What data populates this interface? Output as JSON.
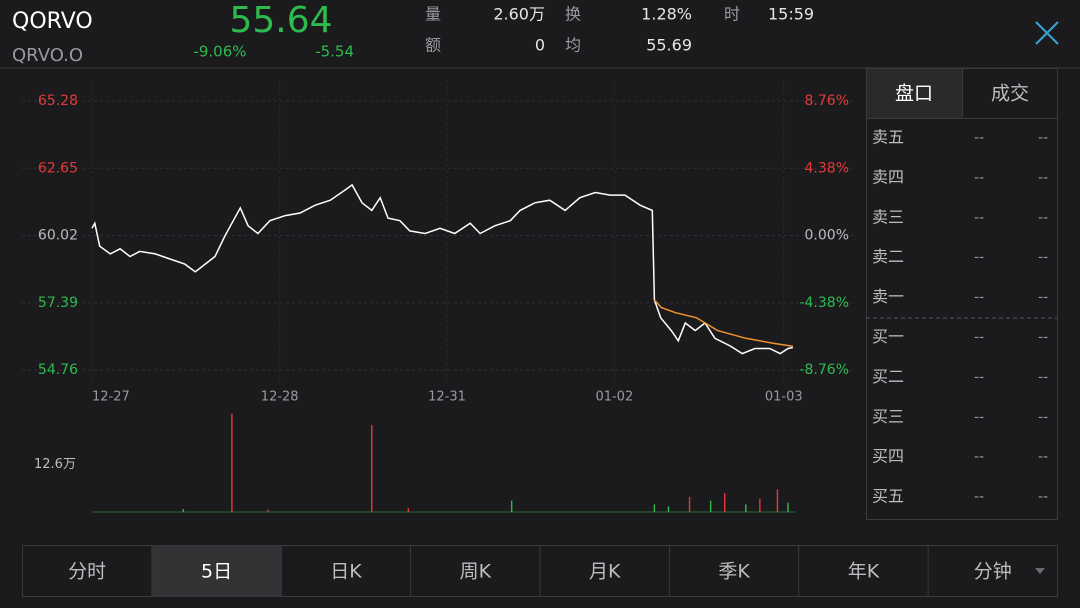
{
  "header": {
    "symbol": "QORVO",
    "code": "QRVO.O",
    "price": "55.64",
    "change_pct": "-9.06%",
    "change": "-5.54",
    "stats": [
      {
        "label": "量",
        "value": "2.60万"
      },
      {
        "label": "额",
        "value": "0"
      },
      {
        "label": "换",
        "value": "1.28%"
      },
      {
        "label": "均",
        "value": "55.69"
      },
      {
        "label": "时",
        "value": "15:59"
      }
    ]
  },
  "chart_data": {
    "type": "line",
    "xlim": [
      0,
      100
    ],
    "xticks": [
      {
        "value": 0,
        "label": "12-27"
      },
      {
        "value": 26.7,
        "label": "12-28"
      },
      {
        "value": 50.5,
        "label": "12-31"
      },
      {
        "value": 74.3,
        "label": "01-02"
      },
      {
        "value": 98.4,
        "label": "01-03"
      }
    ],
    "ylim": [
      54.76,
      65.28
    ],
    "yticks": [
      65.28,
      62.65,
      60.02,
      57.39,
      54.76
    ],
    "y2lim": [
      -8.76,
      8.76
    ],
    "y2ticks": [
      {
        "value": 8.76,
        "label": "8.76%"
      },
      {
        "value": 4.38,
        "label": "4.38%"
      },
      {
        "value": 0,
        "label": "0.00%"
      },
      {
        "value": -4.38,
        "label": "-4.38%"
      },
      {
        "value": -8.76,
        "label": "-8.76%"
      }
    ],
    "grid": true,
    "series": [
      {
        "color": "#ffffff",
        "x": [
          0,
          0.4,
          1.1,
          2.6,
          4,
          5.4,
          6.8,
          9,
          11.1,
          13.2,
          14.7,
          16.1,
          17.5,
          18.9,
          19.9,
          21.1,
          22.2,
          23.6,
          25.3,
          27.5,
          29.6,
          31.7,
          33.9,
          36,
          37,
          38.4,
          39.8,
          41,
          42.1,
          43.8,
          45.2,
          47.4,
          49.5,
          51.6,
          53.8,
          55.2,
          57.3,
          59.5,
          60.9,
          63,
          65.1,
          67.3,
          69.4,
          71.6,
          73.7,
          75.8,
          78,
          79.7,
          80,
          80.9,
          82.4,
          83.4,
          84.4,
          85.8,
          87.2,
          88.6,
          90.8,
          92.5,
          94.3,
          96.4,
          97.9,
          99,
          99.7
        ],
        "values": [
          60.3,
          60.5,
          59.6,
          59.3,
          59.5,
          59.2,
          59.4,
          59.3,
          59.1,
          58.9,
          58.6,
          58.9,
          59.2,
          60.0,
          60.5,
          61.1,
          60.4,
          60.1,
          60.6,
          60.8,
          60.9,
          61.2,
          61.4,
          61.8,
          62.0,
          61.3,
          61.0,
          61.5,
          60.7,
          60.6,
          60.2,
          60.1,
          60.3,
          60.1,
          60.5,
          60.1,
          60.4,
          60.6,
          61.0,
          61.3,
          61.4,
          61.0,
          61.5,
          61.7,
          61.6,
          61.6,
          61.2,
          61.0,
          57.5,
          56.8,
          56.3,
          55.9,
          56.6,
          56.3,
          56.6,
          56.0,
          55.7,
          55.4,
          55.6,
          55.6,
          55.4,
          55.6,
          55.64
        ]
      },
      {
        "color": "#f0922f",
        "x": [
          80,
          81,
          83,
          86,
          89,
          93,
          97,
          99.7
        ],
        "values": [
          57.5,
          57.2,
          57.0,
          56.8,
          56.3,
          56.0,
          55.8,
          55.69
        ]
      }
    ],
    "volume": {
      "ylim": [
        0,
        270000
      ],
      "yticks": [
        {
          "value": 126000,
          "label": "12.6万"
        }
      ],
      "x": [
        13,
        19.9,
        25,
        39.8,
        45,
        59.7,
        80,
        82,
        85,
        88,
        90,
        93,
        95,
        97.5,
        99
      ],
      "values": [
        8000,
        260000,
        6000,
        230000,
        10000,
        30000,
        20000,
        15000,
        40000,
        30000,
        50000,
        20000,
        35000,
        60000,
        25000
      ],
      "colors": [
        "#2dbb4e",
        "#e33a3a",
        "#e33a3a",
        "#e33a3a",
        "#e33a3a",
        "#2dbb4e",
        "#2dbb4e",
        "#2dbb4e",
        "#e33a3a",
        "#2dbb4e",
        "#e33a3a",
        "#2dbb4e",
        "#e33a3a",
        "#e33a3a",
        "#2dbb4e"
      ]
    }
  },
  "order_book": {
    "tabs": [
      "盘口",
      "成交"
    ],
    "rows": [
      {
        "label": "卖五",
        "price": "--",
        "volume": "--"
      },
      {
        "label": "卖四",
        "price": "--",
        "volume": "--"
      },
      {
        "label": "卖三",
        "price": "--",
        "volume": "--"
      },
      {
        "label": "卖二",
        "price": "--",
        "volume": "--"
      },
      {
        "label": "卖一",
        "price": "--",
        "volume": "--"
      },
      {
        "label": "买一",
        "price": "--",
        "volume": "--"
      },
      {
        "label": "买二",
        "price": "--",
        "volume": "--"
      },
      {
        "label": "买三",
        "price": "--",
        "volume": "--"
      },
      {
        "label": "买四",
        "price": "--",
        "volume": "--"
      },
      {
        "label": "买五",
        "price": "--",
        "volume": "--"
      }
    ]
  },
  "tabs": {
    "items": [
      "分时",
      "5日",
      "日K",
      "周K",
      "月K",
      "季K",
      "年K",
      "分钟"
    ],
    "active": 1
  }
}
